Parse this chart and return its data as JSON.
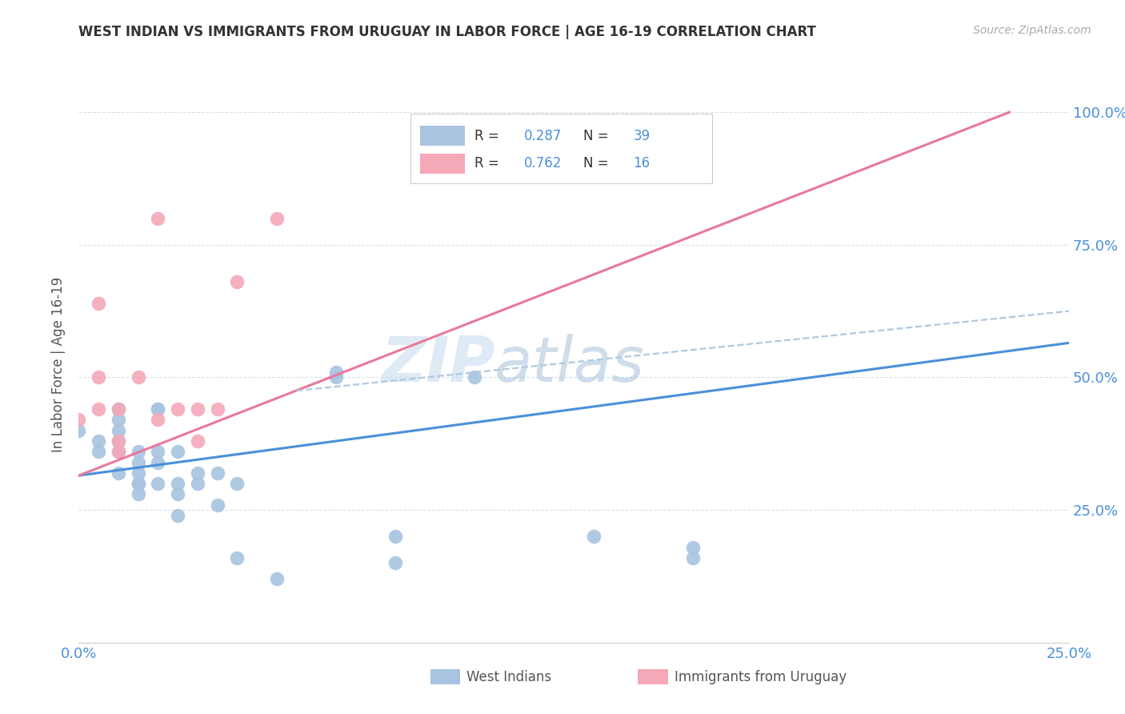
{
  "title": "WEST INDIAN VS IMMIGRANTS FROM URUGUAY IN LABOR FORCE | AGE 16-19 CORRELATION CHART",
  "source": "Source: ZipAtlas.com",
  "ylabel": "In Labor Force | Age 16-19",
  "xlim": [
    0.0,
    0.25
  ],
  "ylim": [
    0.0,
    1.05
  ],
  "legend1_R": "0.287",
  "legend1_N": "39",
  "legend2_R": "0.762",
  "legend2_N": "16",
  "west_indian_color": "#a8c4e0",
  "uruguay_color": "#f4a8b8",
  "trend_blue": "#4a90d9",
  "trend_pink": "#e8799a",
  "trend_dashed_color": "#b0c8e0",
  "watermark_zip": "ZIP",
  "watermark_atlas": "atlas",
  "west_indian_x": [
    0.0,
    0.005,
    0.005,
    0.01,
    0.01,
    0.01,
    0.01,
    0.01,
    0.01,
    0.015,
    0.015,
    0.015,
    0.015,
    0.015,
    0.015,
    0.02,
    0.02,
    0.02,
    0.02,
    0.02,
    0.025,
    0.025,
    0.025,
    0.025,
    0.03,
    0.03,
    0.035,
    0.035,
    0.04,
    0.04,
    0.05,
    0.065,
    0.065,
    0.08,
    0.08,
    0.1,
    0.13,
    0.155,
    0.155
  ],
  "west_indian_y": [
    0.4,
    0.36,
    0.38,
    0.38,
    0.4,
    0.42,
    0.44,
    0.36,
    0.32,
    0.3,
    0.34,
    0.36,
    0.3,
    0.28,
    0.32,
    0.3,
    0.34,
    0.44,
    0.44,
    0.36,
    0.28,
    0.24,
    0.36,
    0.3,
    0.3,
    0.32,
    0.26,
    0.32,
    0.16,
    0.3,
    0.12,
    0.51,
    0.5,
    0.2,
    0.15,
    0.5,
    0.2,
    0.18,
    0.16
  ],
  "uruguay_x": [
    0.0,
    0.005,
    0.005,
    0.005,
    0.01,
    0.01,
    0.01,
    0.015,
    0.02,
    0.02,
    0.025,
    0.03,
    0.03,
    0.035,
    0.04,
    0.05
  ],
  "uruguay_y": [
    0.42,
    0.44,
    0.5,
    0.64,
    0.36,
    0.38,
    0.44,
    0.5,
    0.42,
    0.8,
    0.44,
    0.38,
    0.44,
    0.44,
    0.68,
    0.8
  ],
  "blue_trend_x": [
    0.0,
    0.25
  ],
  "blue_trend_y": [
    0.315,
    0.565
  ],
  "pink_trend_x": [
    0.0,
    0.235
  ],
  "pink_trend_y": [
    0.315,
    1.0
  ],
  "dashed_trend_x": [
    0.055,
    0.25
  ],
  "dashed_trend_y": [
    0.475,
    0.625
  ]
}
